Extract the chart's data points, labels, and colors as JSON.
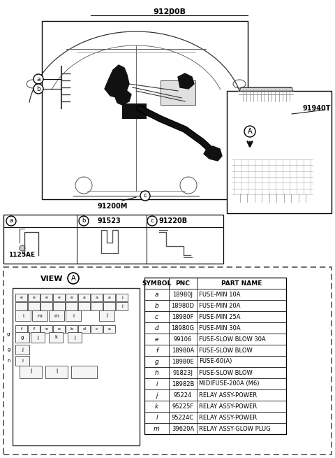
{
  "bg_color": "#ffffff",
  "line_color": "#000000",
  "text_color": "#000000",
  "part_label_91200B": "91200B",
  "part_label_91200M": "91200M",
  "part_label_91940T": "91940T",
  "part_label_91523": "91523",
  "part_label_91220B": "91220B",
  "part_label_1125AE": "1125AE",
  "view_label": "VIEW",
  "view_circle": "A",
  "table_headers": [
    "SYMBOL",
    "PNC",
    "PART NAME"
  ],
  "table_rows": [
    [
      "a",
      "18980J",
      "FUSE-MIN 10A"
    ],
    [
      "b",
      "18980D",
      "FUSE-MIN 20A"
    ],
    [
      "c",
      "18980F",
      "FUSE-MIN 25A"
    ],
    [
      "d",
      "18980G",
      "FUSE-MIN 30A"
    ],
    [
      "e",
      "99106",
      "FUSE-SLOW BLOW 30A"
    ],
    [
      "f",
      "18980A",
      "FUSE-SLOW BLOW"
    ],
    [
      "g",
      "18980E",
      "FUSE-60(A)"
    ],
    [
      "h",
      "91823J",
      "FUSE-SLOW BLOW"
    ],
    [
      "i",
      "18982B",
      "MIDIFUSE-200A (M6)"
    ],
    [
      "j",
      "95224",
      "RELAY ASSY-POWER"
    ],
    [
      "k",
      "95225F",
      "RELAY ASSY-POWER"
    ],
    [
      "l",
      "95224C",
      "RELAY ASSY-POWER"
    ],
    [
      "m",
      "39620A",
      "RELAY ASSY-GLOW PLUG"
    ]
  ]
}
